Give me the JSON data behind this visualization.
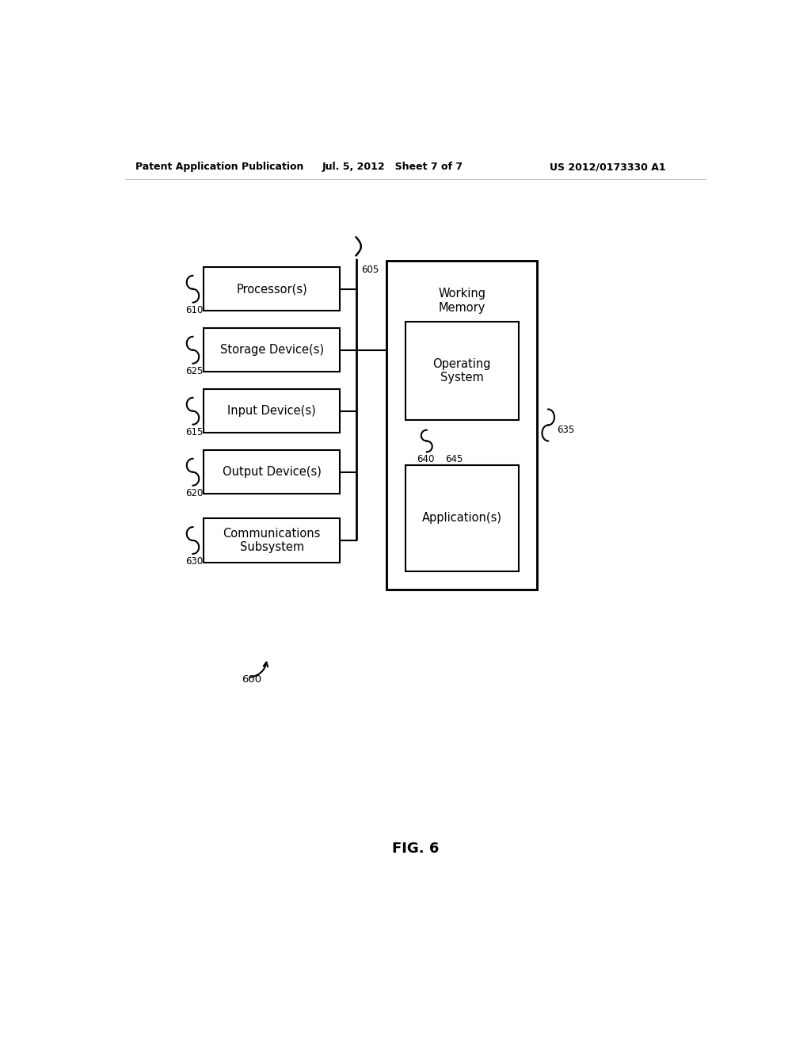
{
  "bg_color": "#ffffff",
  "header_left": "Patent Application Publication",
  "header_mid": "Jul. 5, 2012   Sheet 7 of 7",
  "header_right": "US 2012/0173330 A1",
  "fig_label": "FIG. 6",
  "fig_number": "600",
  "left_boxes": [
    {
      "label": "Processor(s)",
      "tag": "610"
    },
    {
      "label": "Storage Device(s)",
      "tag": "625"
    },
    {
      "label": "Input Device(s)",
      "tag": "615"
    },
    {
      "label": "Output Device(s)",
      "tag": "620"
    },
    {
      "label": "Communications\nSubsystem",
      "tag": "630"
    }
  ],
  "right_box_label": "Working\nMemory",
  "right_box_tag": "635",
  "inner_box1_label": "Operating\nSystem",
  "inner_box1_tag": "640",
  "inner_box2_label": "Application(s)",
  "inner_box2_tag": "645",
  "bus_tag": "605",
  "line_color": "#000000",
  "text_color": "#000000",
  "box_edge_color": "#000000",
  "box_face_color": "#ffffff",
  "lw": 1.5,
  "font_size_box": 10.5,
  "font_size_tag": 8.5,
  "font_size_header": 9,
  "font_size_fig": 13
}
